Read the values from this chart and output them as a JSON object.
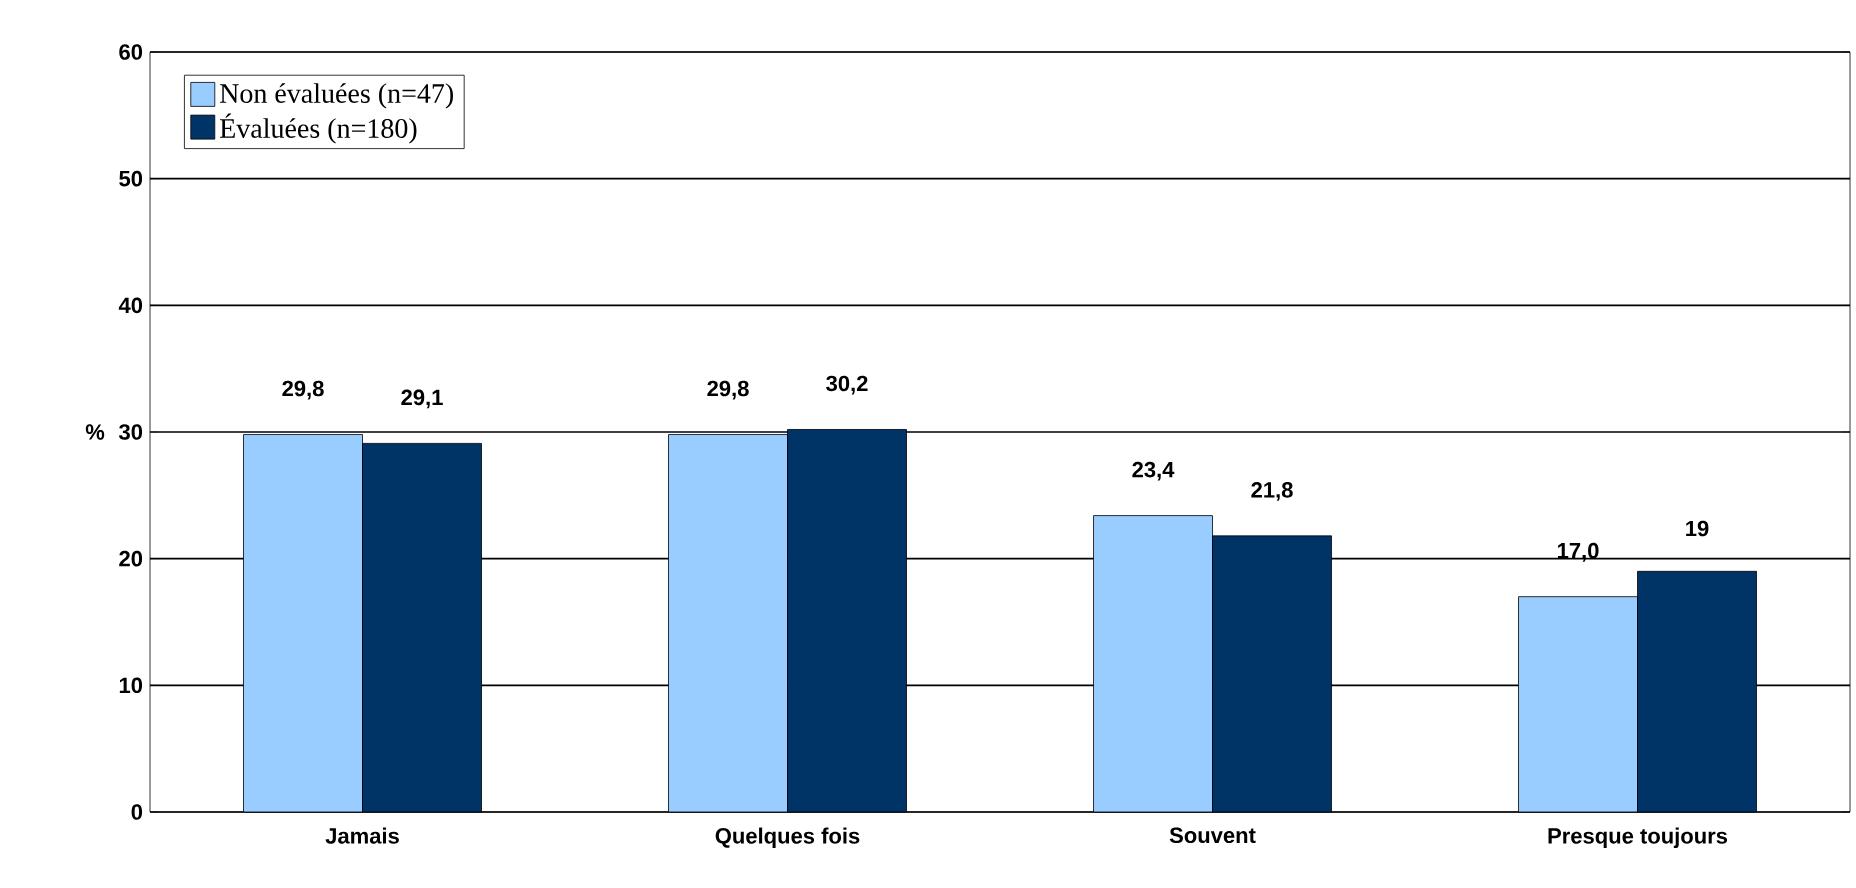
{
  "chart_data": {
    "type": "bar",
    "ylabel": "%",
    "categories": [
      "Jamais",
      "Quelques fois",
      "Souvent",
      "Presque toujours"
    ],
    "series": [
      {
        "name": "Non évaluées (n=47)",
        "color": "#99ccff",
        "values": [
          29.8,
          29.8,
          23.4,
          17.0
        ],
        "value_labels": [
          "29,8",
          "29,8",
          "23,4",
          "17,0"
        ]
      },
      {
        "name": "Évaluées (n=180)",
        "color": "#003366",
        "values": [
          29.1,
          30.2,
          21.8,
          19
        ],
        "value_labels": [
          "29,1",
          "30,2",
          "21,8",
          "19"
        ]
      }
    ],
    "ylim": [
      0,
      60
    ],
    "yticks": [
      0,
      10,
      20,
      30,
      40,
      50,
      60
    ],
    "grid": "y",
    "legend": "top left"
  }
}
